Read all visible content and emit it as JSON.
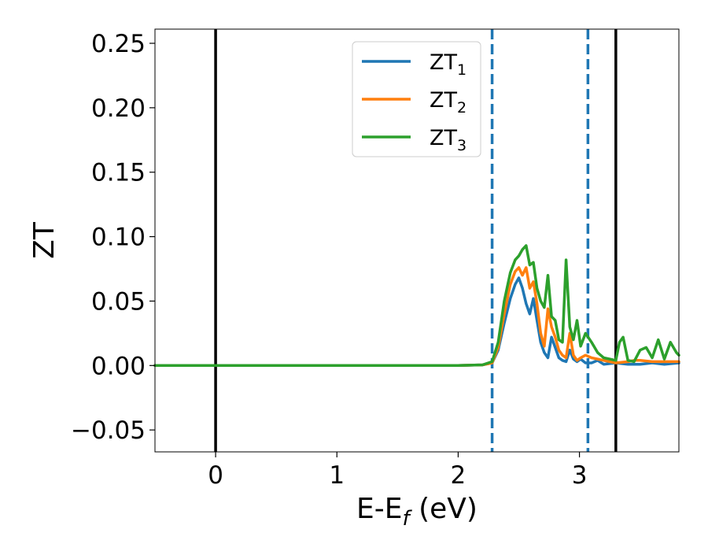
{
  "chart_data": {
    "type": "line",
    "title": "",
    "xlabel": {
      "main": "E-E",
      "sub": "f",
      "tail": " (eV)"
    },
    "ylabel": "ZT",
    "xlim": [
      -0.5,
      3.82
    ],
    "ylim": [
      -0.067,
      0.261
    ],
    "x_ticks": [
      {
        "value": 0,
        "label": "0"
      },
      {
        "value": 1,
        "label": "1"
      },
      {
        "value": 2,
        "label": "2"
      },
      {
        "value": 3,
        "label": "3"
      }
    ],
    "y_ticks": [
      {
        "value": -0.05,
        "label": "−0.05"
      },
      {
        "value": 0.0,
        "label": "0.00"
      },
      {
        "value": 0.05,
        "label": "0.05"
      },
      {
        "value": 0.1,
        "label": "0.10"
      },
      {
        "value": 0.15,
        "label": "0.15"
      },
      {
        "value": 0.2,
        "label": "0.20"
      },
      {
        "value": 0.25,
        "label": "0.25"
      }
    ],
    "grid": false,
    "legend_position": "top-center",
    "vlines": [
      {
        "x": 0.0,
        "style": "solid",
        "color": "#000000"
      },
      {
        "x": 3.3,
        "style": "solid",
        "color": "#000000"
      },
      {
        "x": 2.28,
        "style": "dashed",
        "color": "#1f77b4"
      },
      {
        "x": 3.07,
        "style": "dashed",
        "color": "#1f77b4"
      }
    ],
    "series": [
      {
        "name": {
          "main": "ZT",
          "sub": "1"
        },
        "color": "#1f77b4",
        "x": [
          -0.5,
          2.0,
          2.2,
          2.28,
          2.33,
          2.38,
          2.43,
          2.47,
          2.5,
          2.53,
          2.56,
          2.59,
          2.62,
          2.65,
          2.68,
          2.71,
          2.74,
          2.77,
          2.8,
          2.83,
          2.86,
          2.89,
          2.92,
          2.95,
          2.98,
          3.01,
          3.05,
          3.1,
          3.15,
          3.2,
          3.3,
          3.4,
          3.5,
          3.6,
          3.7,
          3.82
        ],
        "y": [
          0.0,
          0.0,
          0.0005,
          0.002,
          0.012,
          0.033,
          0.052,
          0.063,
          0.068,
          0.06,
          0.048,
          0.04,
          0.052,
          0.035,
          0.018,
          0.01,
          0.006,
          0.022,
          0.014,
          0.006,
          0.004,
          0.003,
          0.012,
          0.005,
          0.003,
          0.005,
          0.002,
          0.002,
          0.004,
          0.001,
          0.002,
          0.001,
          0.001,
          0.002,
          0.001,
          0.002
        ]
      },
      {
        "name": {
          "main": "ZT",
          "sub": "2"
        },
        "color": "#ff7f0e",
        "x": [
          -0.5,
          2.0,
          2.2,
          2.28,
          2.33,
          2.38,
          2.43,
          2.47,
          2.5,
          2.53,
          2.56,
          2.59,
          2.62,
          2.65,
          2.68,
          2.71,
          2.74,
          2.77,
          2.8,
          2.83,
          2.86,
          2.89,
          2.92,
          2.95,
          2.98,
          3.01,
          3.05,
          3.1,
          3.15,
          3.2,
          3.3,
          3.4,
          3.45,
          3.5,
          3.6,
          3.65,
          3.7,
          3.82
        ],
        "y": [
          0.0,
          0.0,
          0.0005,
          0.002,
          0.014,
          0.04,
          0.063,
          0.073,
          0.076,
          0.07,
          0.076,
          0.06,
          0.065,
          0.048,
          0.025,
          0.015,
          0.044,
          0.03,
          0.022,
          0.012,
          0.008,
          0.006,
          0.025,
          0.008,
          0.004,
          0.006,
          0.008,
          0.006,
          0.005,
          0.004,
          0.002,
          0.003,
          0.004,
          0.004,
          0.003,
          0.003,
          0.003,
          0.003
        ]
      },
      {
        "name": {
          "main": "ZT",
          "sub": "3"
        },
        "color": "#2ca02c",
        "x": [
          -0.5,
          2.0,
          2.2,
          2.28,
          2.33,
          2.38,
          2.43,
          2.47,
          2.5,
          2.53,
          2.56,
          2.59,
          2.62,
          2.65,
          2.68,
          2.71,
          2.74,
          2.77,
          2.8,
          2.83,
          2.86,
          2.89,
          2.92,
          2.95,
          2.98,
          3.01,
          3.05,
          3.1,
          3.15,
          3.2,
          3.25,
          3.3,
          3.33,
          3.36,
          3.4,
          3.45,
          3.5,
          3.55,
          3.6,
          3.65,
          3.7,
          3.75,
          3.8,
          3.82
        ],
        "y": [
          0.0,
          0.0,
          0.0005,
          0.003,
          0.018,
          0.05,
          0.072,
          0.082,
          0.085,
          0.09,
          0.093,
          0.078,
          0.08,
          0.06,
          0.05,
          0.045,
          0.07,
          0.038,
          0.035,
          0.02,
          0.018,
          0.082,
          0.03,
          0.02,
          0.035,
          0.015,
          0.025,
          0.018,
          0.01,
          0.006,
          0.005,
          0.004,
          0.018,
          0.022,
          0.004,
          0.003,
          0.012,
          0.014,
          0.006,
          0.02,
          0.005,
          0.018,
          0.01,
          0.008
        ]
      }
    ]
  }
}
